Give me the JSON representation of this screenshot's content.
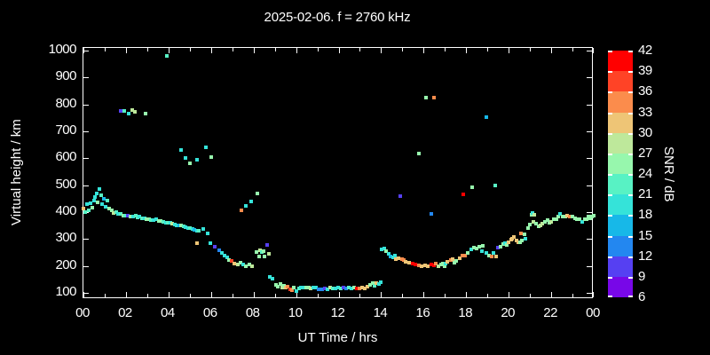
{
  "title": "2025-02-06. f = 2760 kHz",
  "background": "#000000",
  "foreground": "#ffffff",
  "axes": {
    "xlabel": "UT Time / hrs",
    "ylabel": "Virtual height / km",
    "xtick_labels": [
      "00",
      "02",
      "04",
      "06",
      "08",
      "10",
      "12",
      "14",
      "16",
      "18",
      "20",
      "22",
      "00"
    ],
    "xtick_hours": [
      0,
      2,
      4,
      6,
      8,
      10,
      12,
      14,
      16,
      18,
      20,
      22,
      24
    ],
    "ytick_labels": [
      "100",
      "200",
      "300",
      "400",
      "500",
      "600",
      "700",
      "800",
      "900",
      "1000"
    ],
    "ytick_values": [
      100,
      200,
      300,
      400,
      500,
      600,
      700,
      800,
      900,
      1000
    ]
  },
  "colorbar": {
    "label": "SNR / dB",
    "min": 6,
    "max": 42,
    "step": 3,
    "tick_labels": [
      "42",
      "39",
      "36",
      "33",
      "30",
      "27",
      "24",
      "21",
      "18",
      "15",
      "12",
      "9",
      "6"
    ],
    "colors_low_to_high": [
      "#7807e8",
      "#5640f2",
      "#2387f0",
      "#17b8e8",
      "#35e3d9",
      "#58f2c4",
      "#97f7ad",
      "#bee89b",
      "#eec576",
      "#fb8c4c",
      "#ff4326",
      "#ff0000"
    ]
  },
  "chart_data": {
    "type": "scatter",
    "title": "2025-02-06. f = 2760 kHz",
    "xlabel": "UT Time / hrs",
    "ylabel": "Virtual height / km",
    "legend": "colorbar SNR / dB, 6-42 dB in 3 dB bins",
    "xlim": [
      0,
      24
    ],
    "ylim": [
      77,
      1010
    ],
    "grid": false,
    "point_format": "[utc_hour, virtual_height_km, snr_db]",
    "points": [
      [
        0.0,
        412,
        31
      ],
      [
        0.08,
        400,
        22
      ],
      [
        0.17,
        430,
        19
      ],
      [
        0.25,
        408,
        22
      ],
      [
        0.33,
        432,
        19
      ],
      [
        0.42,
        415,
        25
      ],
      [
        0.5,
        443,
        19
      ],
      [
        0.55,
        457,
        19
      ],
      [
        0.63,
        470,
        19
      ],
      [
        0.67,
        437,
        25
      ],
      [
        0.75,
        487,
        19
      ],
      [
        0.83,
        462,
        22
      ],
      [
        0.88,
        430,
        19
      ],
      [
        0.96,
        450,
        16
      ],
      [
        1.04,
        421,
        19
      ],
      [
        1.13,
        443,
        22
      ],
      [
        1.21,
        413,
        25
      ],
      [
        1.33,
        407,
        25
      ],
      [
        1.42,
        398,
        28
      ],
      [
        1.54,
        400,
        22
      ],
      [
        1.63,
        394,
        19
      ],
      [
        1.75,
        392,
        22
      ],
      [
        1.88,
        386,
        25
      ],
      [
        1.96,
        388,
        22
      ],
      [
        2.08,
        388,
        10
      ],
      [
        2.21,
        382,
        25
      ],
      [
        2.33,
        385,
        19
      ],
      [
        2.46,
        387,
        22
      ],
      [
        2.54,
        380,
        22
      ],
      [
        2.63,
        383,
        19
      ],
      [
        2.75,
        378,
        22
      ],
      [
        2.88,
        376,
        19
      ],
      [
        2.96,
        373,
        25
      ],
      [
        3.09,
        372,
        25
      ],
      [
        3.17,
        370,
        22
      ],
      [
        3.3,
        369,
        19
      ],
      [
        3.42,
        372,
        19
      ],
      [
        3.55,
        368,
        25
      ],
      [
        3.63,
        366,
        25
      ],
      [
        3.76,
        363,
        22
      ],
      [
        3.88,
        360,
        19
      ],
      [
        3.97,
        362,
        22
      ],
      [
        4.09,
        361,
        19
      ],
      [
        4.18,
        357,
        28
      ],
      [
        4.3,
        353,
        19
      ],
      [
        4.38,
        352,
        19
      ],
      [
        4.51,
        350,
        16
      ],
      [
        4.59,
        350,
        25
      ],
      [
        4.72,
        348,
        22
      ],
      [
        4.8,
        345,
        19
      ],
      [
        4.93,
        342,
        19
      ],
      [
        5.01,
        340,
        22
      ],
      [
        5.14,
        337,
        19
      ],
      [
        5.22,
        335,
        16
      ],
      [
        5.35,
        332,
        19
      ],
      [
        5.43,
        330,
        22
      ],
      [
        5.63,
        337,
        19
      ],
      [
        5.84,
        321,
        19
      ],
      [
        5.97,
        285,
        19
      ],
      [
        5.34,
        285,
        31
      ],
      [
        6.18,
        271,
        10
      ],
      [
        6.39,
        258,
        13
      ],
      [
        6.51,
        248,
        19
      ],
      [
        6.64,
        238,
        19
      ],
      [
        6.76,
        232,
        19
      ],
      [
        6.85,
        222,
        25
      ],
      [
        6.97,
        218,
        37
      ],
      [
        7.1,
        208,
        31
      ],
      [
        7.26,
        205,
        28
      ],
      [
        7.39,
        212,
        25
      ],
      [
        7.51,
        205,
        19
      ],
      [
        7.64,
        198,
        25
      ],
      [
        7.81,
        205,
        25
      ],
      [
        7.93,
        198,
        28
      ],
      [
        7.43,
        407,
        34
      ],
      [
        7.64,
        423,
        19
      ],
      [
        7.89,
        440,
        19
      ],
      [
        8.18,
        469,
        25
      ],
      [
        8.14,
        251,
        25
      ],
      [
        8.26,
        235,
        25
      ],
      [
        8.31,
        258,
        28
      ],
      [
        8.39,
        252,
        22
      ],
      [
        8.47,
        255,
        25
      ],
      [
        8.52,
        235,
        25
      ],
      [
        8.64,
        278,
        10
      ],
      [
        8.72,
        246,
        28
      ],
      [
        8.77,
        159,
        19
      ],
      [
        8.89,
        153,
        19
      ],
      [
        9.06,
        130,
        25
      ],
      [
        9.14,
        124,
        25
      ],
      [
        9.27,
        133,
        25
      ],
      [
        9.35,
        119,
        28
      ],
      [
        9.44,
        126,
        25
      ],
      [
        9.52,
        119,
        31
      ],
      [
        9.6,
        122,
        34
      ],
      [
        9.73,
        112,
        37
      ],
      [
        9.81,
        109,
        34
      ],
      [
        9.9,
        119,
        25
      ],
      [
        10.02,
        106,
        19
      ],
      [
        10.15,
        115,
        22
      ],
      [
        10.23,
        119,
        19
      ],
      [
        10.36,
        119,
        19
      ],
      [
        10.48,
        119,
        25
      ],
      [
        10.61,
        119,
        25
      ],
      [
        10.69,
        115,
        28
      ],
      [
        10.82,
        119,
        19
      ],
      [
        10.94,
        119,
        19
      ],
      [
        11.07,
        112,
        13
      ],
      [
        11.23,
        112,
        13
      ],
      [
        11.36,
        116,
        10
      ],
      [
        11.48,
        112,
        19
      ],
      [
        11.61,
        119,
        28
      ],
      [
        11.73,
        115,
        22
      ],
      [
        11.86,
        117,
        19
      ],
      [
        11.98,
        119,
        19
      ],
      [
        12.11,
        115,
        22
      ],
      [
        12.23,
        119,
        10
      ],
      [
        12.36,
        115,
        13
      ],
      [
        12.48,
        119,
        22
      ],
      [
        12.61,
        115,
        19
      ],
      [
        12.73,
        119,
        25
      ],
      [
        12.86,
        115,
        40
      ],
      [
        12.98,
        115,
        34
      ],
      [
        13.11,
        119,
        31
      ],
      [
        13.23,
        115,
        31
      ],
      [
        13.36,
        122,
        31
      ],
      [
        13.48,
        129,
        25
      ],
      [
        13.61,
        135,
        25
      ],
      [
        13.69,
        125,
        22
      ],
      [
        13.78,
        135,
        31
      ],
      [
        13.9,
        132,
        19
      ],
      [
        13.98,
        139,
        19
      ],
      [
        14.03,
        261,
        19
      ],
      [
        14.15,
        265,
        19
      ],
      [
        14.24,
        255,
        25
      ],
      [
        14.36,
        245,
        19
      ],
      [
        14.45,
        235,
        16
      ],
      [
        14.57,
        232,
        19
      ],
      [
        14.66,
        238,
        19
      ],
      [
        14.7,
        225,
        31
      ],
      [
        14.82,
        229,
        31
      ],
      [
        14.99,
        225,
        34
      ],
      [
        15.07,
        222,
        34
      ],
      [
        15.16,
        215,
        31
      ],
      [
        15.32,
        212,
        31
      ],
      [
        15.49,
        209,
        40
      ],
      [
        15.62,
        205,
        40
      ],
      [
        15.78,
        202,
        34
      ],
      [
        15.91,
        199,
        31
      ],
      [
        16.07,
        202,
        31
      ],
      [
        16.2,
        199,
        31
      ],
      [
        16.36,
        205,
        40
      ],
      [
        16.49,
        202,
        40
      ],
      [
        16.57,
        209,
        34
      ],
      [
        16.7,
        199,
        28
      ],
      [
        16.82,
        205,
        25
      ],
      [
        16.91,
        209,
        25
      ],
      [
        16.99,
        199,
        25
      ],
      [
        17.03,
        209,
        19
      ],
      [
        17.12,
        215,
        31
      ],
      [
        17.28,
        222,
        34
      ],
      [
        17.37,
        225,
        31
      ],
      [
        17.45,
        212,
        25
      ],
      [
        17.53,
        219,
        25
      ],
      [
        17.7,
        229,
        31
      ],
      [
        17.82,
        238,
        34
      ],
      [
        17.95,
        238,
        34
      ],
      [
        18.07,
        248,
        25
      ],
      [
        18.24,
        261,
        19
      ],
      [
        18.36,
        268,
        25
      ],
      [
        18.49,
        265,
        25
      ],
      [
        18.61,
        272,
        25
      ],
      [
        18.74,
        255,
        19
      ],
      [
        18.78,
        275,
        25
      ],
      [
        18.95,
        248,
        19
      ],
      [
        19.07,
        238,
        25
      ],
      [
        19.2,
        235,
        34
      ],
      [
        19.28,
        248,
        19
      ],
      [
        19.41,
        235,
        31
      ],
      [
        19.49,
        268,
        10
      ],
      [
        19.62,
        272,
        25
      ],
      [
        19.74,
        282,
        25
      ],
      [
        19.83,
        285,
        19
      ],
      [
        19.91,
        278,
        25
      ],
      [
        19.99,
        288,
        31
      ],
      [
        20.12,
        298,
        31
      ],
      [
        20.16,
        300,
        31
      ],
      [
        20.24,
        307,
        31
      ],
      [
        20.37,
        294,
        31
      ],
      [
        20.45,
        288,
        31
      ],
      [
        20.53,
        289,
        25
      ],
      [
        20.57,
        320,
        34
      ],
      [
        20.62,
        294,
        25
      ],
      [
        20.74,
        317,
        25
      ],
      [
        20.78,
        301,
        19
      ],
      [
        20.91,
        340,
        25
      ],
      [
        20.99,
        353,
        25
      ],
      [
        21.07,
        390,
        25
      ],
      [
        21.12,
        397,
        19
      ],
      [
        21.16,
        365,
        28
      ],
      [
        21.2,
        390,
        28
      ],
      [
        21.28,
        357,
        25
      ],
      [
        21.41,
        347,
        25
      ],
      [
        21.49,
        350,
        28
      ],
      [
        21.57,
        357,
        28
      ],
      [
        21.7,
        363,
        25
      ],
      [
        21.82,
        370,
        25
      ],
      [
        21.91,
        360,
        25
      ],
      [
        21.99,
        365,
        28
      ],
      [
        22.12,
        372,
        25
      ],
      [
        22.24,
        375,
        25
      ],
      [
        22.32,
        382,
        25
      ],
      [
        22.41,
        395,
        19
      ],
      [
        22.53,
        385,
        25
      ],
      [
        22.66,
        382,
        25
      ],
      [
        22.74,
        388,
        31
      ],
      [
        22.87,
        385,
        34
      ],
      [
        22.99,
        382,
        25
      ],
      [
        23.12,
        378,
        25
      ],
      [
        23.2,
        375,
        25
      ],
      [
        23.32,
        372,
        25
      ],
      [
        23.45,
        365,
        19
      ],
      [
        23.57,
        372,
        25
      ],
      [
        23.66,
        375,
        25
      ],
      [
        23.74,
        382,
        25
      ],
      [
        23.83,
        378,
        25
      ],
      [
        23.91,
        385,
        25
      ],
      [
        23.99,
        388,
        25
      ],
      [
        1.75,
        776,
        10
      ],
      [
        1.92,
        776,
        22
      ],
      [
        2.13,
        766,
        19
      ],
      [
        2.3,
        779,
        28
      ],
      [
        2.42,
        772,
        28
      ],
      [
        2.92,
        766,
        25
      ],
      [
        3.93,
        980,
        22
      ],
      [
        4.59,
        631,
        19
      ],
      [
        4.8,
        601,
        19
      ],
      [
        5.01,
        581,
        25
      ],
      [
        5.34,
        594,
        19
      ],
      [
        5.76,
        641,
        19
      ],
      [
        6.01,
        604,
        25
      ],
      [
        14.9,
        459,
        10
      ],
      [
        15.77,
        617,
        25
      ],
      [
        16.1,
        825,
        25
      ],
      [
        16.49,
        825,
        34
      ],
      [
        16.36,
        393,
        13
      ],
      [
        17.86,
        466,
        40
      ],
      [
        18.28,
        492,
        25
      ],
      [
        18.95,
        753,
        16
      ],
      [
        19.36,
        499,
        22
      ]
    ]
  }
}
